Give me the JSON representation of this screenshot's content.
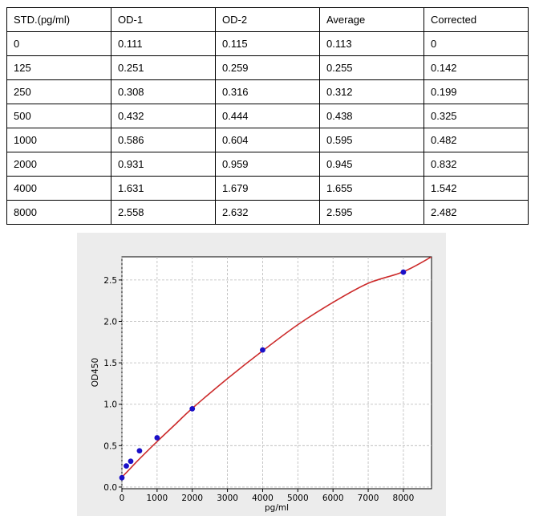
{
  "table": {
    "headers": [
      "STD.(pg/ml)",
      "OD-1",
      "OD-2",
      "Average",
      "Corrected"
    ],
    "rows": [
      [
        "0",
        "0.111",
        "0.115",
        "0.113",
        "0"
      ],
      [
        "125",
        "0.251",
        "0.259",
        "0.255",
        "0.142"
      ],
      [
        "250",
        "0.308",
        "0.316",
        "0.312",
        "0.199"
      ],
      [
        "500",
        "0.432",
        "0.444",
        "0.438",
        "0.325"
      ],
      [
        "1000",
        "0.586",
        "0.604",
        "0.595",
        "0.482"
      ],
      [
        "2000",
        "0.931",
        "0.959",
        "0.945",
        "0.832"
      ],
      [
        "4000",
        "1.631",
        "1.679",
        "1.655",
        "1.542"
      ],
      [
        "8000",
        "2.558",
        "2.632",
        "2.595",
        "2.482"
      ]
    ]
  },
  "chart_data": {
    "type": "scatter",
    "title": "",
    "xlabel": "pg/ml",
    "ylabel": "OD450",
    "xlim": [
      0,
      8800
    ],
    "ylim": [
      -0.02,
      2.78
    ],
    "xticks": [
      0,
      1000,
      2000,
      3000,
      4000,
      5000,
      6000,
      7000,
      8000
    ],
    "yticks": [
      0.0,
      0.5,
      1.0,
      1.5,
      2.0,
      2.5
    ],
    "xtick_labels": [
      "0",
      "1000",
      "2000",
      "3000",
      "4000",
      "5000",
      "6000",
      "7000",
      "8000"
    ],
    "ytick_labels": [
      "0.0",
      "0.5",
      "1.0",
      "1.5",
      "2.0",
      "2.5"
    ],
    "grid": true,
    "points": {
      "x": [
        0,
        125,
        250,
        500,
        1000,
        2000,
        4000,
        8000
      ],
      "y": [
        0.113,
        0.255,
        0.312,
        0.438,
        0.595,
        0.945,
        1.655,
        2.595
      ]
    },
    "fit_curve": {
      "x": [
        0,
        250,
        500,
        1000,
        1500,
        2000,
        3000,
        4000,
        5000,
        6000,
        7000,
        8000,
        8800
      ],
      "y": [
        0.12,
        0.23,
        0.34,
        0.55,
        0.75,
        0.95,
        1.31,
        1.645,
        1.96,
        2.23,
        2.46,
        2.6,
        2.78
      ]
    },
    "colors": {
      "points": "#1a10c8",
      "curve": "#cc2b2b",
      "grid": "#b8b8b8",
      "panel": "#ececec"
    }
  }
}
